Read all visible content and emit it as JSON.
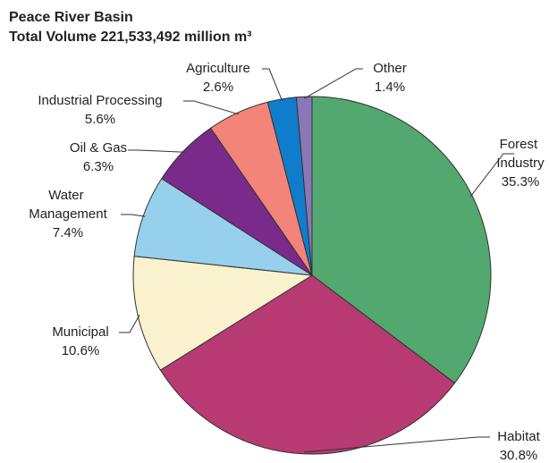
{
  "chart_data": {
    "type": "pie",
    "title": "Peace River Basin",
    "subtitle": "Total Volume 221,533,492 million m³",
    "categories": [
      "Forest Industry",
      "Habitat",
      "Municipal",
      "Water Management",
      "Oil & Gas",
      "Industrial Processing",
      "Agriculture",
      "Other"
    ],
    "values": [
      35.3,
      30.8,
      10.6,
      7.4,
      6.3,
      5.6,
      2.6,
      1.4
    ],
    "value_labels": [
      "35.3%",
      "30.8%",
      "10.6%",
      "7.4%",
      "6.3%",
      "5.6%",
      "2.6%",
      "1.4%"
    ],
    "colors": [
      "#52a86e",
      "#b83a73",
      "#faf1cf",
      "#97d0ec",
      "#7a2a8a",
      "#f2847a",
      "#0f7ccc",
      "#8b76b8"
    ]
  }
}
